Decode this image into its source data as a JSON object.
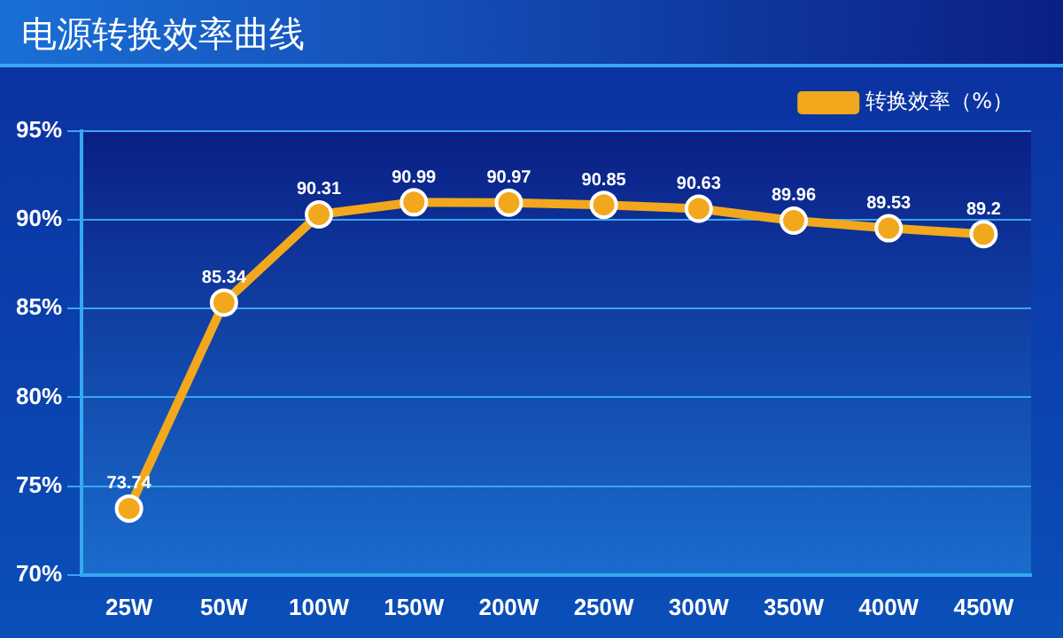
{
  "chart_data": {
    "type": "line",
    "title": "电源转换效率曲线",
    "categories": [
      "25W",
      "50W",
      "100W",
      "150W",
      "200W",
      "250W",
      "300W",
      "350W",
      "400W",
      "450W"
    ],
    "series": [
      {
        "name": "转换效率（%）",
        "color": "#f2a81d",
        "values": [
          73.74,
          85.34,
          90.31,
          90.99,
          90.97,
          90.85,
          90.63,
          89.96,
          89.53,
          89.2
        ]
      }
    ],
    "ylim": [
      70,
      95
    ],
    "yticks": [
      {
        "value": 70,
        "label": "70%"
      },
      {
        "value": 75,
        "label": "75%"
      },
      {
        "value": 80,
        "label": "80%"
      },
      {
        "value": 85,
        "label": "85%"
      },
      {
        "value": 90,
        "label": "90%"
      },
      {
        "value": 95,
        "label": "95%"
      }
    ],
    "grid": "y",
    "legend": "top right",
    "marker": "circle",
    "line_style": "solid",
    "data_labels": true
  }
}
